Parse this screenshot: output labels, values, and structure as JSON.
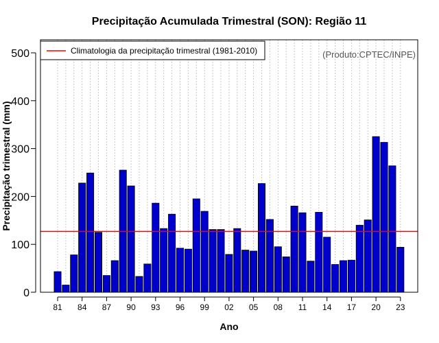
{
  "chart_data": {
    "type": "bar",
    "title": "Precipitação Acumulada Trimestral (SON): Região 11",
    "xlabel": "Ano",
    "ylabel": "Precipitação trimestral (mm)",
    "ylim": [
      0,
      500
    ],
    "yticks": [
      0,
      100,
      200,
      300,
      400,
      500
    ],
    "years": [
      1981,
      1982,
      1983,
      1984,
      1985,
      1986,
      1987,
      1988,
      1989,
      1990,
      1991,
      1992,
      1993,
      1994,
      1995,
      1996,
      1997,
      1998,
      1999,
      2000,
      2001,
      2002,
      2003,
      2004,
      2005,
      2006,
      2007,
      2008,
      2009,
      2010,
      2011,
      2012,
      2013,
      2014,
      2015,
      2016,
      2017,
      2018,
      2019,
      2020,
      2021,
      2022,
      2023
    ],
    "xtick_labels": [
      "81",
      "84",
      "87",
      "90",
      "93",
      "96",
      "99",
      "02",
      "05",
      "08",
      "11",
      "14",
      "17",
      "20",
      "23"
    ],
    "xtick_years": [
      1981,
      1984,
      1987,
      1990,
      1993,
      1996,
      1999,
      2002,
      2005,
      2008,
      2011,
      2014,
      2017,
      2020,
      2023
    ],
    "values": [
      43,
      15,
      78,
      228,
      249,
      125,
      35,
      66,
      255,
      222,
      33,
      59,
      186,
      133,
      163,
      92,
      90,
      195,
      169,
      131,
      131,
      79,
      133,
      88,
      86,
      227,
      152,
      95,
      74,
      180,
      166,
      65,
      167,
      115,
      58,
      66,
      67,
      140,
      151,
      325,
      313,
      264,
      94
    ],
    "climatology": 127,
    "bar_color": "#0000cc",
    "climatology_color": "#ff0000",
    "legend": {
      "label": "Climatologia da precipitação trimestral (1981-2010)",
      "position": "top-left"
    },
    "source_note": "(Produto:CPTEC/INPE)",
    "grid": "vertical dotted"
  }
}
